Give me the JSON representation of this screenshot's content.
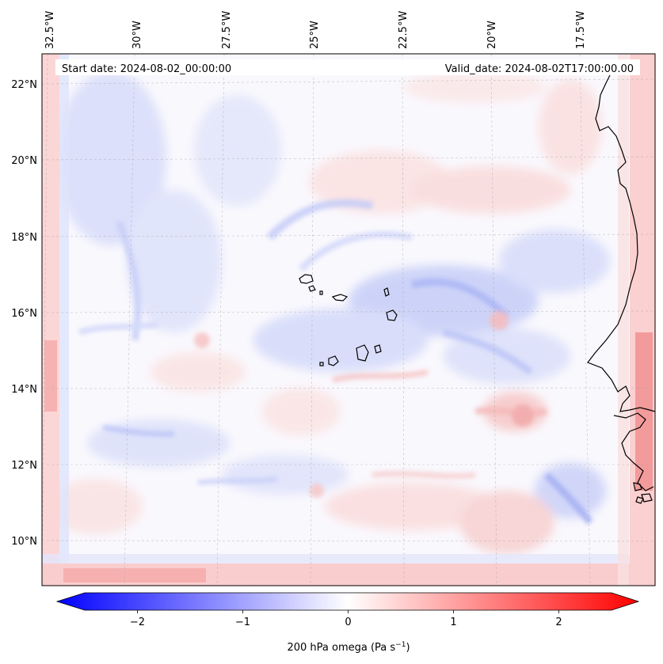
{
  "map": {
    "start_date_label": "Start date: 2024-08-02_00:00:00",
    "valid_date_label": "Valid_date: 2024-08-02T17:00:00.00",
    "longitude_labels": [
      "32.5°W",
      "30°W",
      "27.5°W",
      "25°W",
      "22.5°W",
      "20°W",
      "17.5°W"
    ],
    "latitude_labels": [
      "22°N",
      "20°N",
      "18°N",
      "16°N",
      "14°N",
      "12°N",
      "10°N"
    ],
    "colorbar": {
      "tick_labels": [
        "−2",
        "−1",
        "0",
        "1",
        "2"
      ],
      "tick_values": [
        -2,
        -1,
        0,
        1,
        2
      ],
      "range": [
        -2.5,
        2.5
      ],
      "label": "200 hPa omega (Pa s",
      "label_exponent": "−1",
      "label_close": ")",
      "colors": {
        "negative": "#0000ff",
        "zero": "#ffffff",
        "positive": "#ff0000"
      }
    }
  }
}
